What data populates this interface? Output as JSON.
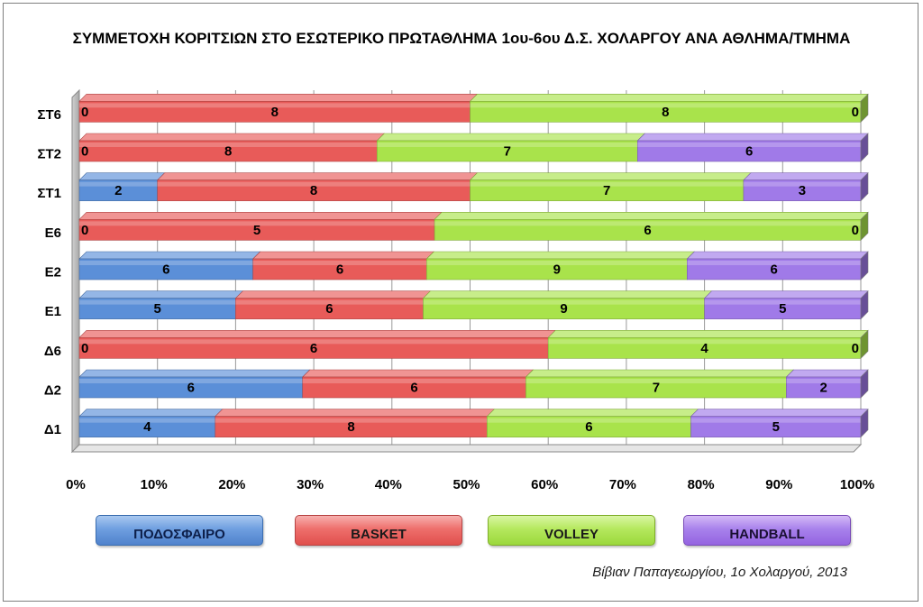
{
  "chart_data": {
    "type": "bar",
    "orientation": "horizontal",
    "stacking": "percent",
    "title": "ΣΥΜΜΕΤΟΧΗ ΚΟΡΙΤΣΙΩΝ ΣΤΟ ΕΣΩΤΕΡΙΚΟ ΠΡΩΤΑΘΛΗΜΑ 1ου-6ου Δ.Σ. ΧΟΛΑΡΓΟΥ ΑΝΑ ΑΘΛΗΜΑ/ΤΜΗΜΑ",
    "categories": [
      "Δ1",
      "Δ2",
      "Δ6",
      "Ε1",
      "Ε2",
      "Ε6",
      "ΣΤ1",
      "ΣΤ2",
      "ΣΤ6"
    ],
    "series": [
      {
        "name": "ΠΟΔΟΣΦΑΙΡΟ",
        "values": [
          4,
          6,
          0,
          5,
          6,
          0,
          2,
          0,
          0
        ],
        "color": "#5b8fd8"
      },
      {
        "name": "BASKET",
        "values": [
          8,
          6,
          6,
          6,
          6,
          5,
          8,
          8,
          8
        ],
        "color": "#e85b59"
      },
      {
        "name": "VOLLEY",
        "values": [
          6,
          7,
          4,
          9,
          9,
          6,
          7,
          7,
          8
        ],
        "color": "#a9e34b"
      },
      {
        "name": "HANDBALL",
        "values": [
          5,
          2,
          0,
          5,
          6,
          0,
          3,
          6,
          0
        ],
        "color": "#a07ae8"
      }
    ],
    "xticks": [
      "0%",
      "10%",
      "20%",
      "30%",
      "40%",
      "50%",
      "60%",
      "70%",
      "80%",
      "90%",
      "100%"
    ],
    "xlim": [
      0,
      100
    ],
    "grid": true,
    "legend": "bottom"
  },
  "credit": "Βίβιαν Παπαγεωργίου, 1ο Χολαργού, 2013"
}
